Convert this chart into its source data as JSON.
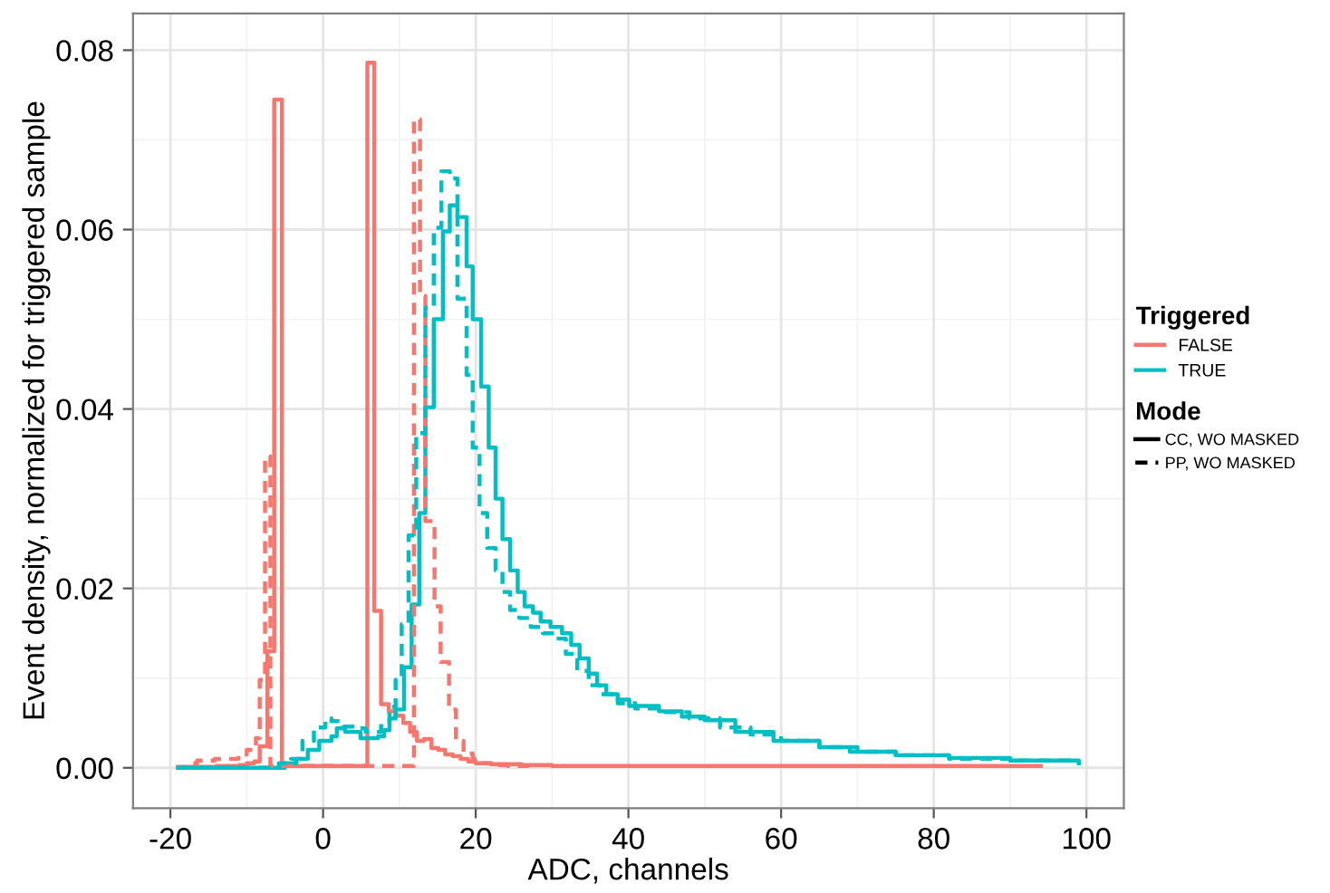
{
  "chart_data": {
    "type": "step",
    "xlabel": "ADC, channels",
    "ylabel": "Event density, normalized for triggered sample",
    "legend_title": [
      "Triggered",
      "Mode"
    ],
    "annotations": [
      "CC, WO MASKED",
      "PP, WO MASKED"
    ],
    "xlim": [
      -24.9,
      104.9
    ],
    "ylim": [
      -0.0045,
      0.0841
    ],
    "xticks": [
      -20,
      0,
      20,
      40,
      60,
      80,
      100
    ],
    "yticks": [
      {
        "value": 0,
        "label": "0.00"
      },
      {
        "value": 0.02,
        "label": "0.02"
      },
      {
        "value": 0.04,
        "label": "0.04"
      },
      {
        "value": 0.06,
        "label": "0.06"
      },
      {
        "value": 0.08,
        "label": "0.08"
      }
    ],
    "grid": true,
    "legend": "right",
    "series": [
      {
        "name": "FALSE",
        "color": "#f8766d",
        "line_style": "solid",
        "x": [
          -19,
          -14,
          -11,
          -10,
          -9,
          -8.3,
          -7.3,
          -6.4,
          -5.4,
          5.8,
          6.7,
          7.6,
          8.6,
          9.5,
          10.5,
          11.4,
          12.3,
          13.2,
          14.2,
          15.1,
          16,
          17,
          18,
          19,
          20,
          22,
          26,
          30,
          94
        ],
        "values": [
          0.0001,
          0.0002,
          0.0003,
          0.0005,
          0.0007,
          0.0024,
          0.013,
          0.0745,
          0.0002,
          0.0786,
          0.0175,
          0.0071,
          0.0063,
          0.0058,
          0.005,
          0.004,
          0.003,
          0.0032,
          0.0022,
          0.002,
          0.0015,
          0.0013,
          0.001,
          0.0007,
          0.0005,
          0.0004,
          0.0003,
          0.0002,
          0.0002
        ]
      },
      {
        "name": "TRUE",
        "color": "#00bfc4",
        "line_style": "solid",
        "x": [
          -19,
          -5,
          -3.5,
          -2,
          -0.5,
          1.1,
          1.8,
          2.9,
          4.9,
          7.2,
          8,
          8.7,
          9.5,
          10.6,
          11.6,
          12.6,
          13.4,
          14.5,
          15.7,
          16.6,
          17.6,
          18.8,
          19.6,
          20.7,
          21.7,
          22.6,
          23.5,
          24.5,
          25.5,
          26.4,
          27.5,
          28.5,
          29.8,
          31.3,
          32.5,
          33.6,
          34.8,
          35.9,
          37.1,
          38.6,
          40.1,
          44,
          47,
          50,
          54,
          59,
          65,
          69,
          75,
          82,
          90,
          99
        ],
        "values": [
          0,
          0.0005,
          0.001,
          0.002,
          0.003,
          0.0035,
          0.0044,
          0.004,
          0.0033,
          0.0035,
          0.0042,
          0.0055,
          0.0065,
          0.0112,
          0.0182,
          0.0284,
          0.0402,
          0.05,
          0.0598,
          0.0627,
          0.0614,
          0.0559,
          0.05,
          0.0425,
          0.0357,
          0.03,
          0.0255,
          0.022,
          0.0196,
          0.018,
          0.0173,
          0.0163,
          0.0157,
          0.015,
          0.0137,
          0.0122,
          0.0105,
          0.0092,
          0.0082,
          0.0076,
          0.0069,
          0.0063,
          0.0057,
          0.0053,
          0.004,
          0.003,
          0.0023,
          0.0018,
          0.0014,
          0.0011,
          0.0008,
          0.0005
        ]
      },
      {
        "color": "#f8766d",
        "line_style": "dashed",
        "x": [
          -17,
          -16.5,
          -14.2,
          -11.1,
          -10,
          -8.8,
          -8.3,
          -7.6,
          -6.9,
          11.9,
          12.7,
          13.4,
          14.6,
          15.4,
          16.5,
          17.4,
          18.4,
          19.6,
          20.7,
          22.6,
          24.2,
          27
        ],
        "values": [
          0.0005,
          0.0008,
          0.001,
          0.0015,
          0.002,
          0.0033,
          0.0098,
          0.0347,
          0.0002,
          0.0723,
          0.0526,
          0.0275,
          0.018,
          0.0118,
          0.0065,
          0.003,
          0.0016,
          0.001,
          0.0005,
          0.0003,
          0.0002,
          0.0002
        ]
      },
      {
        "color": "#00bfc4",
        "line_style": "dashed",
        "x": [
          -19,
          -5.8,
          -4.2,
          -2.7,
          -1.2,
          0.3,
          1.1,
          2.6,
          4.1,
          5.6,
          7.6,
          8.7,
          9.5,
          10.3,
          11.2,
          12.2,
          13.4,
          14.5,
          15.5,
          16.6,
          17.6,
          18.8,
          19.6,
          20.5,
          21.5,
          22.6,
          23.5,
          24.5,
          25.7,
          27.2,
          28.8,
          30.3,
          31.8,
          33.3,
          34.8,
          36.3,
          38.6,
          40.9,
          44,
          48,
          52,
          56,
          60,
          65,
          70,
          75,
          82,
          90,
          99
        ],
        "values": [
          0,
          0.0005,
          0.001,
          0.003,
          0.0045,
          0.0055,
          0.0052,
          0.0046,
          0.0044,
          0.004,
          0.005,
          0.0068,
          0.0098,
          0.016,
          0.0259,
          0.0373,
          0.0513,
          0.0602,
          0.0665,
          0.0657,
          0.0523,
          0.0438,
          0.0357,
          0.0284,
          0.0245,
          0.022,
          0.0196,
          0.0176,
          0.0167,
          0.0157,
          0.015,
          0.0144,
          0.0127,
          0.0108,
          0.0092,
          0.0082,
          0.0072,
          0.0066,
          0.0062,
          0.0055,
          0.0045,
          0.0037,
          0.003,
          0.0023,
          0.0018,
          0.0014,
          0.001,
          0.0008,
          0.0005
        ]
      }
    ]
  }
}
